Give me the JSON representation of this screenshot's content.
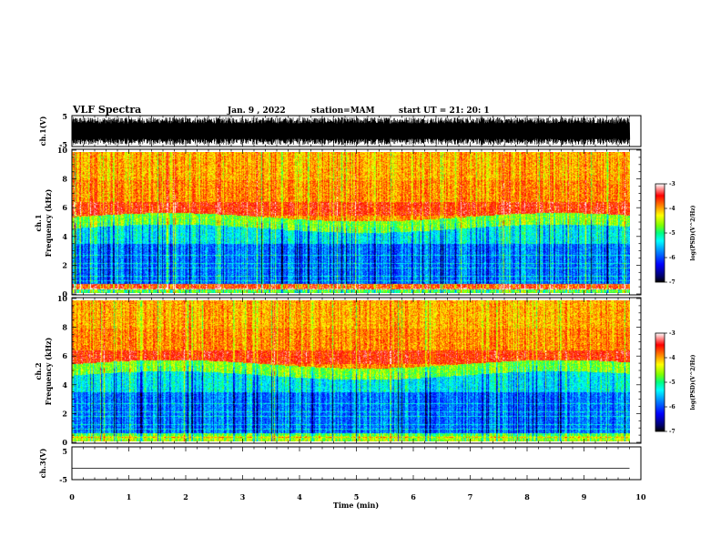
{
  "header": {
    "title": "VLF Spectra",
    "date": "Jan. 9 , 2022",
    "station": "station=MAM",
    "start": "start UT = 21: 20: 1"
  },
  "chart_data": [
    {
      "type": "line",
      "panel": "ch1-waveform",
      "ylabel": "ch.1(V)",
      "ylim": [
        -5,
        5
      ],
      "yticks": [
        "5",
        "-5"
      ],
      "xlim": [
        0,
        10
      ],
      "amplitude_approx": 4.5
    },
    {
      "type": "heatmap",
      "panel": "ch1-spectrogram",
      "ylabel_top": "ch.1",
      "ylabel": "Frequency (kHz)",
      "ylim": [
        0,
        10
      ],
      "yticks": [
        "0",
        "2",
        "4",
        "6",
        "8",
        "10"
      ],
      "xlim": [
        0,
        9.8
      ],
      "colorbar": {
        "label": "log(PSD)(V^2/Hz)",
        "range": [
          -7,
          -3
        ],
        "ticks": [
          "-3",
          "-4",
          "-5",
          "-6",
          "-7"
        ]
      }
    },
    {
      "type": "heatmap",
      "panel": "ch2-spectrogram",
      "ylabel_top": "ch.2",
      "ylabel": "Frequency (kHz)",
      "ylim": [
        0,
        10
      ],
      "yticks": [
        "0",
        "2",
        "4",
        "6",
        "8",
        "10"
      ],
      "xlim": [
        0,
        9.8
      ],
      "colorbar": {
        "label": "log(PSD)(V^2/Hz)",
        "range": [
          -7,
          -3
        ],
        "ticks": [
          "-3",
          "-4",
          "-5",
          "-6",
          "-7"
        ]
      }
    },
    {
      "type": "line",
      "panel": "ch3-waveform",
      "ylabel": "ch.3(V)",
      "ylim": [
        -5,
        5
      ],
      "yticks": [
        "5",
        "-5"
      ],
      "xlim": [
        0,
        10
      ],
      "y_constant": -1.5
    }
  ],
  "xaxis": {
    "label": "Time (min)",
    "ticks": [
      "0",
      "1",
      "2",
      "3",
      "4",
      "5",
      "6",
      "7",
      "8",
      "9",
      "10"
    ]
  },
  "colors": {
    "colormap": [
      "#000080",
      "#0000ff",
      "#0080ff",
      "#00ffff",
      "#00ff80",
      "#80ff00",
      "#ffff00",
      "#ff8000",
      "#ff0000",
      "#ffffff"
    ]
  }
}
